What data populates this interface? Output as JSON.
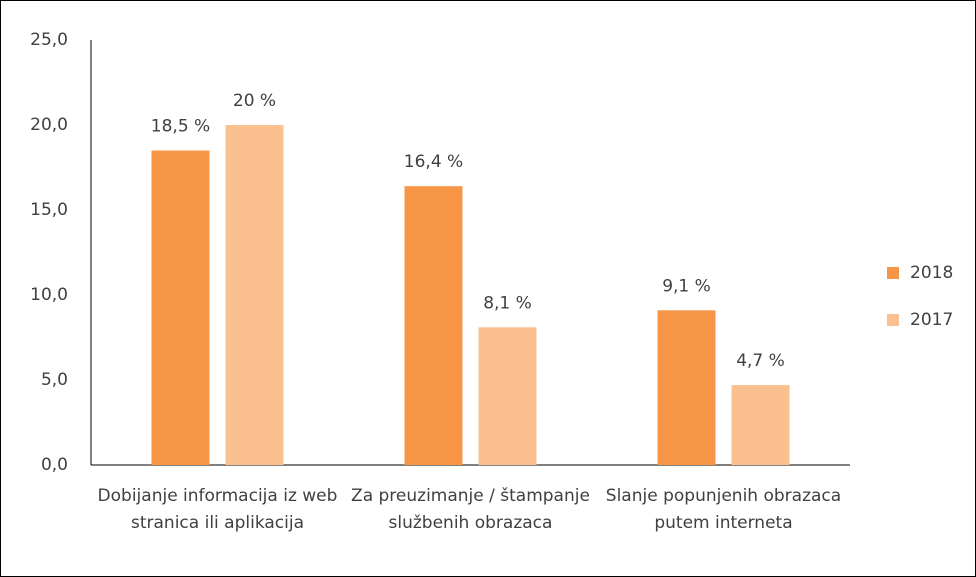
{
  "chart_data": {
    "type": "bar",
    "categories": [
      "Dobijanje informacija iz web stranica ili aplikacija",
      "Za preuzimanje / štampanje službenih obrazaca",
      "Slanje popunjenih obrazaca putem interneta"
    ],
    "series": [
      {
        "name": "2018",
        "color": "#f79646",
        "values": [
          18.5,
          16.4,
          9.1
        ],
        "value_labels": [
          "18,5 %",
          "16,4 %",
          "9,1 %"
        ]
      },
      {
        "name": "2017",
        "color": "#fac090",
        "values": [
          20,
          8.1,
          4.7
        ],
        "value_labels": [
          "20 %",
          "8,1 %",
          "4,7 %"
        ]
      }
    ],
    "ylim": [
      0,
      25
    ],
    "yticks": [
      {
        "value": 0,
        "label": "0,0"
      },
      {
        "value": 5,
        "label": "5,0"
      },
      {
        "value": 10,
        "label": "10,0"
      },
      {
        "value": 15,
        "label": "15,0"
      },
      {
        "value": 20,
        "label": "20,0"
      },
      {
        "value": 25,
        "label": "25,0"
      }
    ],
    "legend": "right"
  }
}
